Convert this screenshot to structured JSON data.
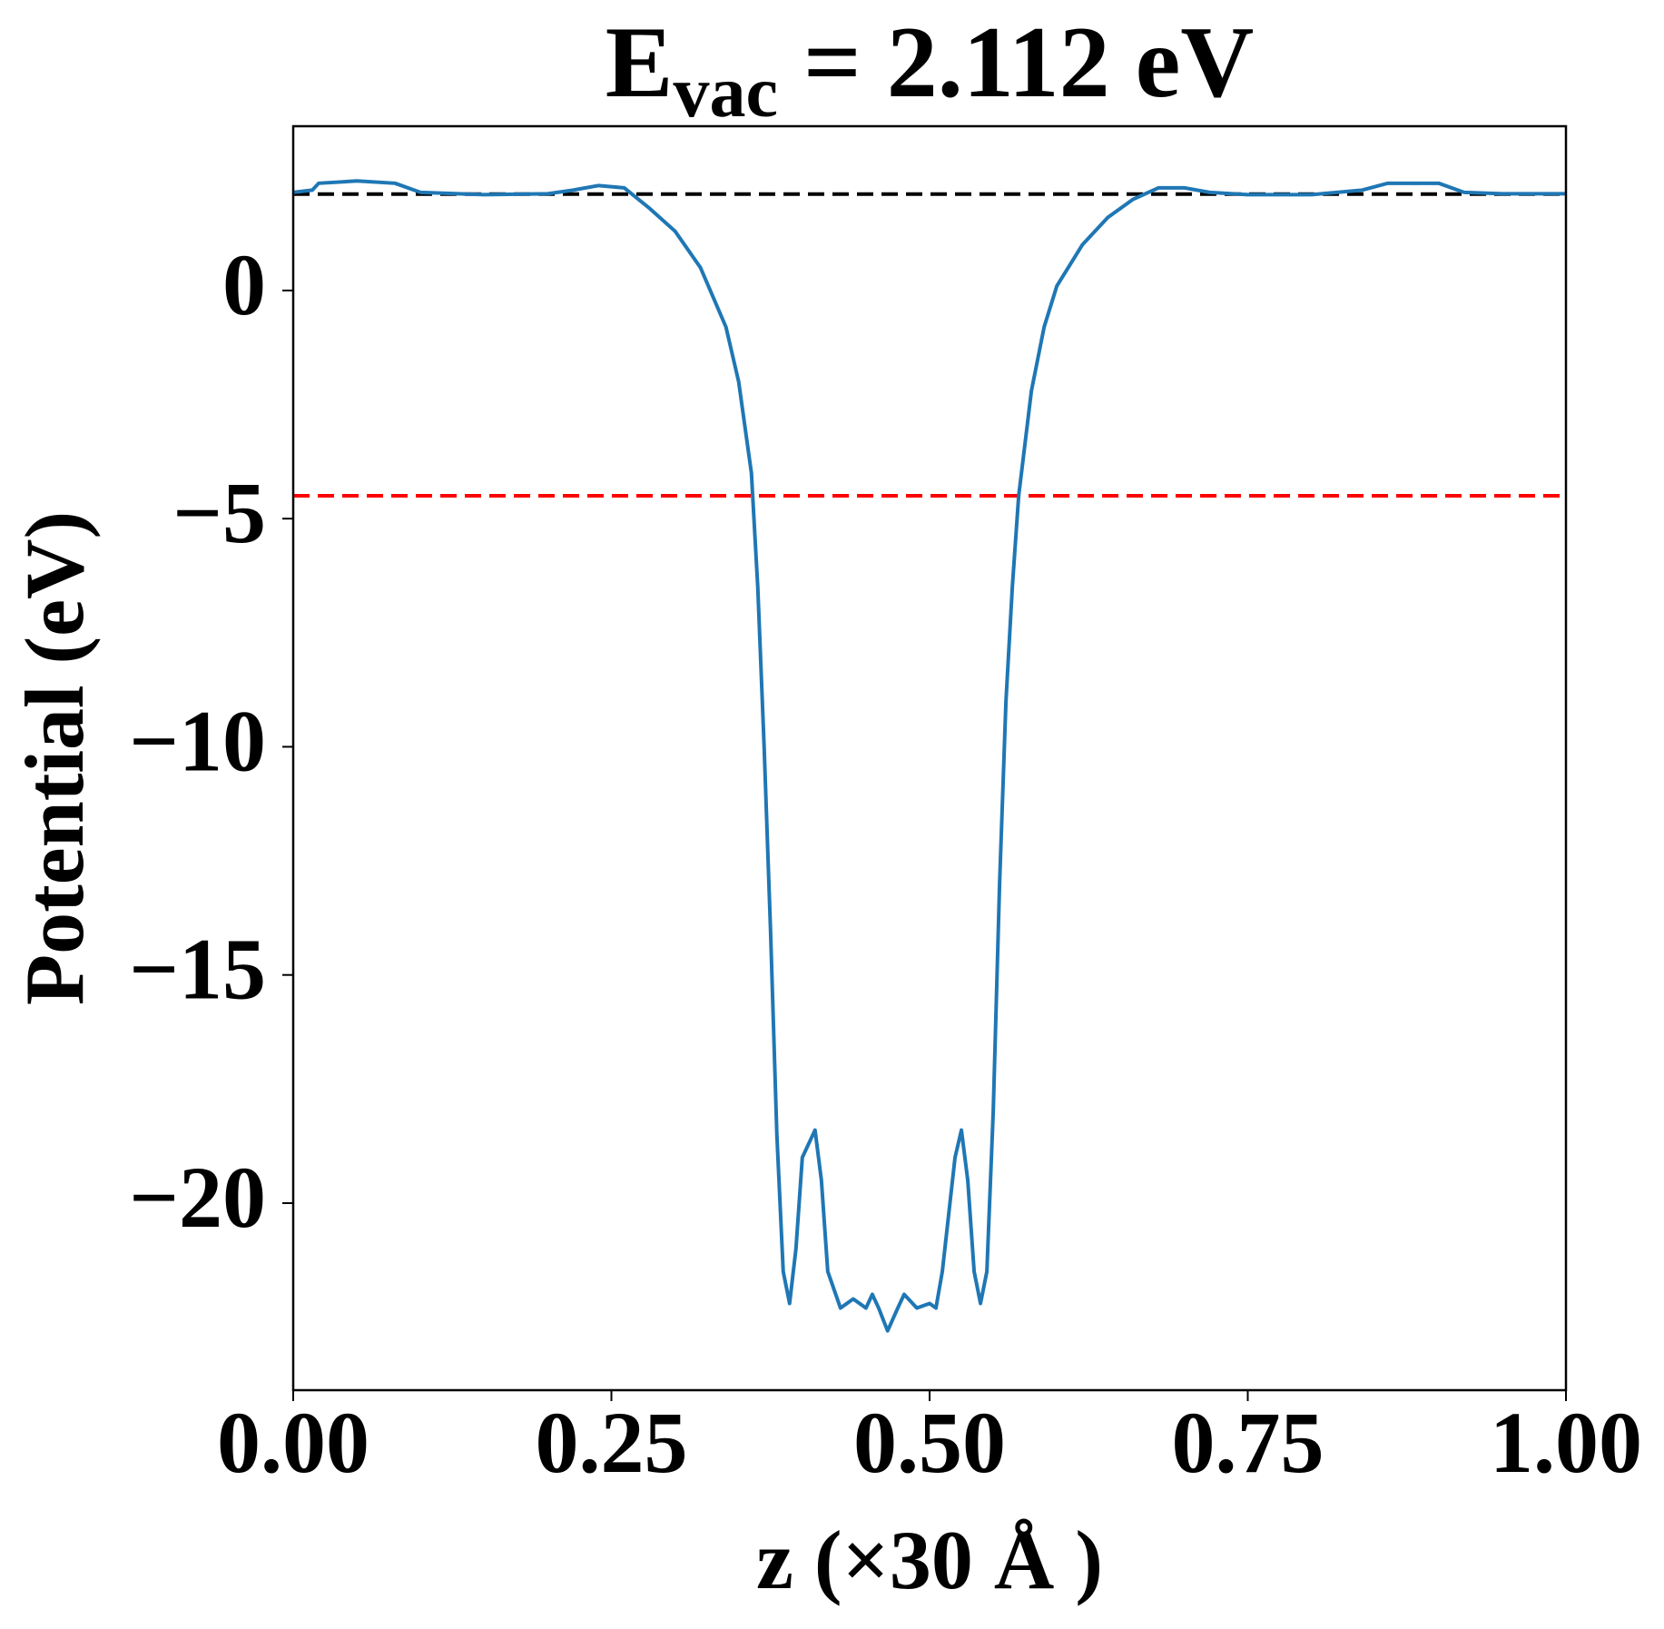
{
  "chart_data": {
    "type": "line",
    "title": {
      "base": "E",
      "subscript": "vac",
      "rest": " = 2.112 eV"
    },
    "xlabel": "z (×30 Å )",
    "ylabel": "Potential (eV)",
    "xlim": [
      0,
      1
    ],
    "ylim": [
      -24.1,
      3.6
    ],
    "xticks": [
      {
        "value": 0,
        "label": "0.00"
      },
      {
        "value": 0.25,
        "label": "0.25"
      },
      {
        "value": 0.5,
        "label": "0.50"
      },
      {
        "value": 0.75,
        "label": "0.75"
      },
      {
        "value": 1,
        "label": "1.00"
      }
    ],
    "yticks": [
      0,
      {
        "value": -5,
        "label": "−5"
      },
      {
        "value": -10,
        "label": "−10"
      },
      {
        "value": -15,
        "label": "−15"
      },
      {
        "value": -20,
        "label": "−20"
      }
    ],
    "hlines": [
      {
        "value": 2.112,
        "color": "#000000"
      },
      {
        "value": -4.5,
        "color": "#ff0000"
      }
    ],
    "x": [
      0,
      0.015,
      0.02,
      0.05,
      0.08,
      0.1,
      0.15,
      0.2,
      0.22,
      0.24,
      0.26,
      0.28,
      0.3,
      0.32,
      0.34,
      0.35,
      0.36,
      0.365,
      0.37,
      0.375,
      0.38,
      0.385,
      0.39,
      0.395,
      0.4,
      0.41,
      0.415,
      0.42,
      0.43,
      0.44,
      0.45,
      0.455,
      0.46,
      0.467,
      0.475,
      0.48,
      0.49,
      0.5,
      0.505,
      0.51,
      0.52,
      0.525,
      0.53,
      0.535,
      0.54,
      0.545,
      0.55,
      0.555,
      0.56,
      0.565,
      0.57,
      0.58,
      0.59,
      0.6,
      0.62,
      0.64,
      0.66,
      0.68,
      0.7,
      0.72,
      0.75,
      0.8,
      0.84,
      0.86,
      0.9,
      0.92,
      0.95,
      1
    ],
    "series": [
      {
        "color": "#1f77b4",
        "values": [
          2.15,
          2.2,
          2.35,
          2.4,
          2.35,
          2.15,
          2.1,
          2.12,
          2.2,
          2.3,
          2.25,
          1.8,
          1.3,
          0.5,
          -0.8,
          -2.0,
          -4.0,
          -6.5,
          -10,
          -14,
          -18.5,
          -21.5,
          -22.2,
          -21,
          -19,
          -18.4,
          -19.5,
          -21.5,
          -22.3,
          -22.1,
          -22.3,
          -22,
          -22.3,
          -22.8,
          -22.3,
          -22,
          -22.3,
          -22.2,
          -22.3,
          -21.5,
          -19,
          -18.4,
          -19.5,
          -21.5,
          -22.2,
          -21.5,
          -18,
          -13,
          -9,
          -6.5,
          -4.5,
          -2.2,
          -0.8,
          0.1,
          1.0,
          1.6,
          2.0,
          2.25,
          2.25,
          2.15,
          2.1,
          2.1,
          2.2,
          2.35,
          2.35,
          2.15,
          2.12,
          2.12
        ]
      }
    ]
  }
}
